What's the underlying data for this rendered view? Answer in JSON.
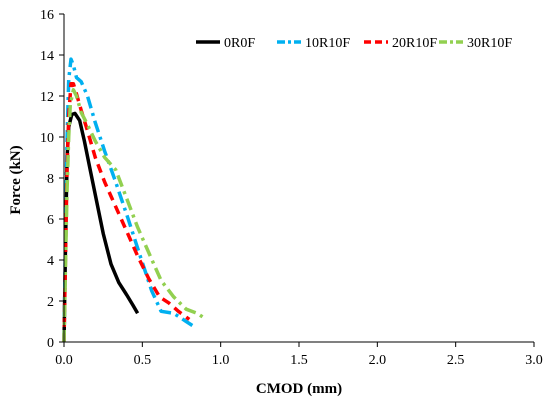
{
  "chart_data": {
    "type": "line",
    "title": "",
    "xlabel": "CMOD (mm)",
    "ylabel": "Force (kN)",
    "xlim": [
      0,
      3.0
    ],
    "ylim": [
      0,
      16
    ],
    "xticks": [
      "0.0",
      "0.5",
      "1.0",
      "1.5",
      "2.0",
      "2.5",
      "3.0"
    ],
    "yticks": [
      "0",
      "2",
      "4",
      "6",
      "8",
      "10",
      "12",
      "14",
      "16"
    ],
    "grid": false,
    "legend_position": "top-right",
    "series": [
      {
        "name": "0R0F",
        "color": "#000000",
        "dash": "solid",
        "x": [
          0.0,
          0.01,
          0.02,
          0.03,
          0.05,
          0.07,
          0.1,
          0.13,
          0.17,
          0.21,
          0.25,
          0.3,
          0.35,
          0.4,
          0.44,
          0.47
        ],
        "y": [
          0.0,
          5.0,
          9.0,
          10.5,
          11.1,
          11.15,
          10.8,
          9.8,
          8.3,
          6.8,
          5.3,
          3.8,
          2.9,
          2.3,
          1.8,
          1.4
        ]
      },
      {
        "name": "10R10F",
        "color": "#00B0F0",
        "dash": "dashdot",
        "x": [
          0.0,
          0.01,
          0.02,
          0.03,
          0.045,
          0.06,
          0.08,
          0.11,
          0.15,
          0.2,
          0.26,
          0.33,
          0.41,
          0.49,
          0.56,
          0.62,
          0.7,
          0.78,
          0.84
        ],
        "y": [
          0.0,
          5.5,
          10.0,
          12.8,
          13.8,
          13.5,
          12.9,
          12.7,
          12.0,
          10.7,
          9.3,
          7.8,
          6.0,
          4.1,
          2.5,
          1.5,
          1.4,
          1.0,
          0.7
        ]
      },
      {
        "name": "20R10F",
        "color": "#FF0000",
        "dash": "dash",
        "x": [
          0.0,
          0.01,
          0.02,
          0.03,
          0.045,
          0.06,
          0.08,
          0.11,
          0.15,
          0.2,
          0.26,
          0.33,
          0.4,
          0.47,
          0.54,
          0.61,
          0.67,
          0.73,
          0.8
        ],
        "y": [
          0.0,
          4.5,
          8.5,
          11.0,
          12.6,
          12.6,
          12.1,
          11.3,
          10.3,
          9.0,
          7.8,
          6.6,
          5.4,
          4.2,
          3.1,
          2.2,
          1.9,
          1.5,
          1.1
        ]
      },
      {
        "name": "30R10F",
        "color": "#92D050",
        "dash": "dashdot",
        "x": [
          0.0,
          0.01,
          0.02,
          0.03,
          0.04,
          0.06,
          0.08,
          0.11,
          0.15,
          0.2,
          0.26,
          0.33,
          0.4,
          0.47,
          0.55,
          0.62,
          0.7,
          0.78,
          0.85,
          0.89
        ],
        "y": [
          0.0,
          4.0,
          7.5,
          10.0,
          11.6,
          12.3,
          12.0,
          11.2,
          10.6,
          9.8,
          9.0,
          8.4,
          7.0,
          5.6,
          4.2,
          3.0,
          2.2,
          1.6,
          1.4,
          1.2
        ]
      }
    ]
  }
}
